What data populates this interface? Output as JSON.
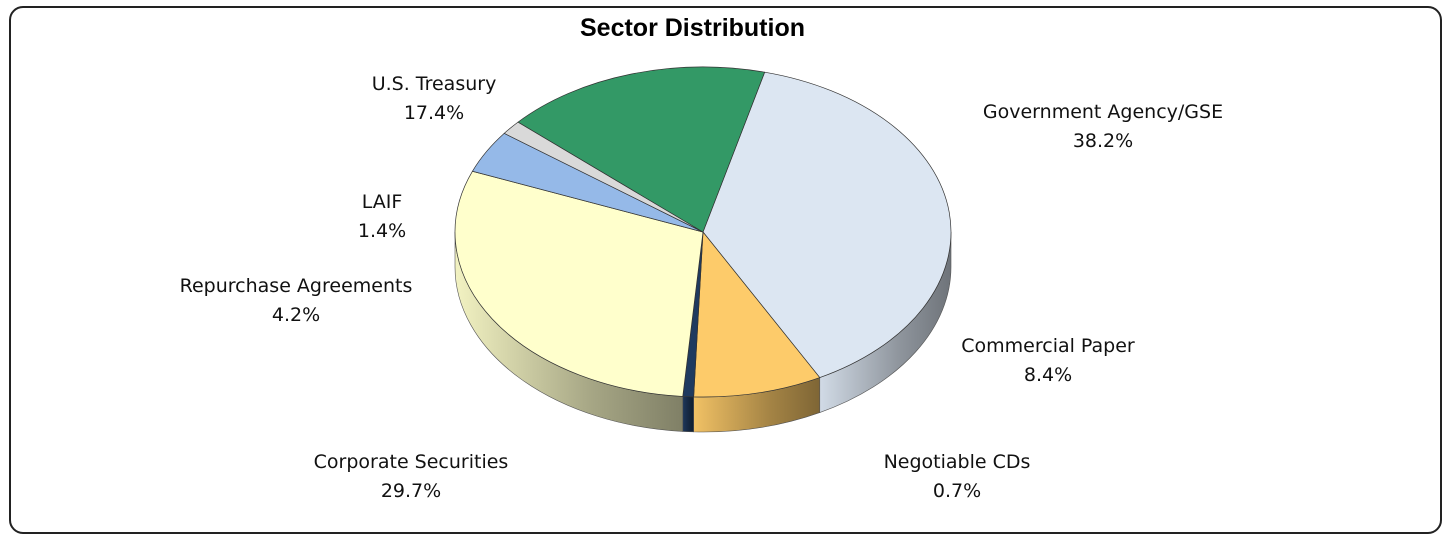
{
  "chart_data": {
    "type": "pie",
    "title": "Sector Distribution",
    "slices": [
      {
        "label": "Government Agency/GSE",
        "value": 38.2,
        "display": "38.2%",
        "color": "#dce6f2"
      },
      {
        "label": "Commercial Paper",
        "value": 8.4,
        "display": "8.4%",
        "color": "#fdcb6a"
      },
      {
        "label": "Negotiable CDs",
        "value": 0.7,
        "display": "0.7%",
        "color": "#1f3a5f"
      },
      {
        "label": "Corporate Securities",
        "value": 29.7,
        "display": "29.7%",
        "color": "#ffffcc"
      },
      {
        "label": "Repurchase Agreements",
        "value": 4.2,
        "display": "4.2%",
        "color": "#95b9e8"
      },
      {
        "label": "LAIF",
        "value": 1.4,
        "display": "1.4%",
        "color": "#d9d9d9"
      },
      {
        "label": "U.S. Treasury",
        "value": 17.4,
        "display": "17.4%",
        "color": "#339966"
      }
    ],
    "style": "3d-tilted",
    "legend": "none"
  }
}
